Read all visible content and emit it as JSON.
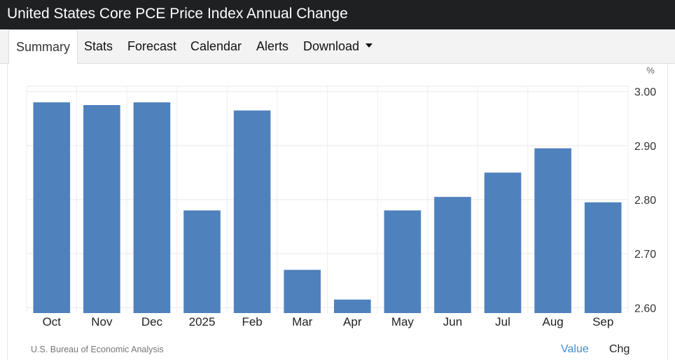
{
  "header": {
    "title": "United States Core PCE Price Index Annual Change"
  },
  "tabs": [
    {
      "label": "Summary",
      "active": true
    },
    {
      "label": "Stats"
    },
    {
      "label": "Forecast"
    },
    {
      "label": "Calendar"
    },
    {
      "label": "Alerts"
    },
    {
      "label": "Download",
      "has_dropdown": true
    }
  ],
  "footer": {
    "source": "U.S. Bureau of Economic Analysis",
    "toggle_value": "Value",
    "toggle_chg": "Chg"
  },
  "colors": {
    "bar": "#4f81bd",
    "title_bar": "#1f2022",
    "active_toggle": "#3d8fd6"
  },
  "chart_data": {
    "type": "bar",
    "unit": "%",
    "categories": [
      "Oct",
      "Nov",
      "Dec",
      "2025",
      "Feb",
      "Mar",
      "Apr",
      "May",
      "Jun",
      "Jul",
      "Aug",
      "Sep"
    ],
    "values": [
      2.98,
      2.975,
      2.98,
      2.78,
      2.965,
      2.67,
      2.615,
      2.78,
      2.805,
      2.85,
      2.895,
      2.795
    ],
    "ylim": [
      2.59,
      3.01
    ],
    "yticks": [
      "3.00",
      "2.90",
      "2.80",
      "2.70",
      "2.60"
    ],
    "grid": true,
    "y_axis_position": "right"
  }
}
